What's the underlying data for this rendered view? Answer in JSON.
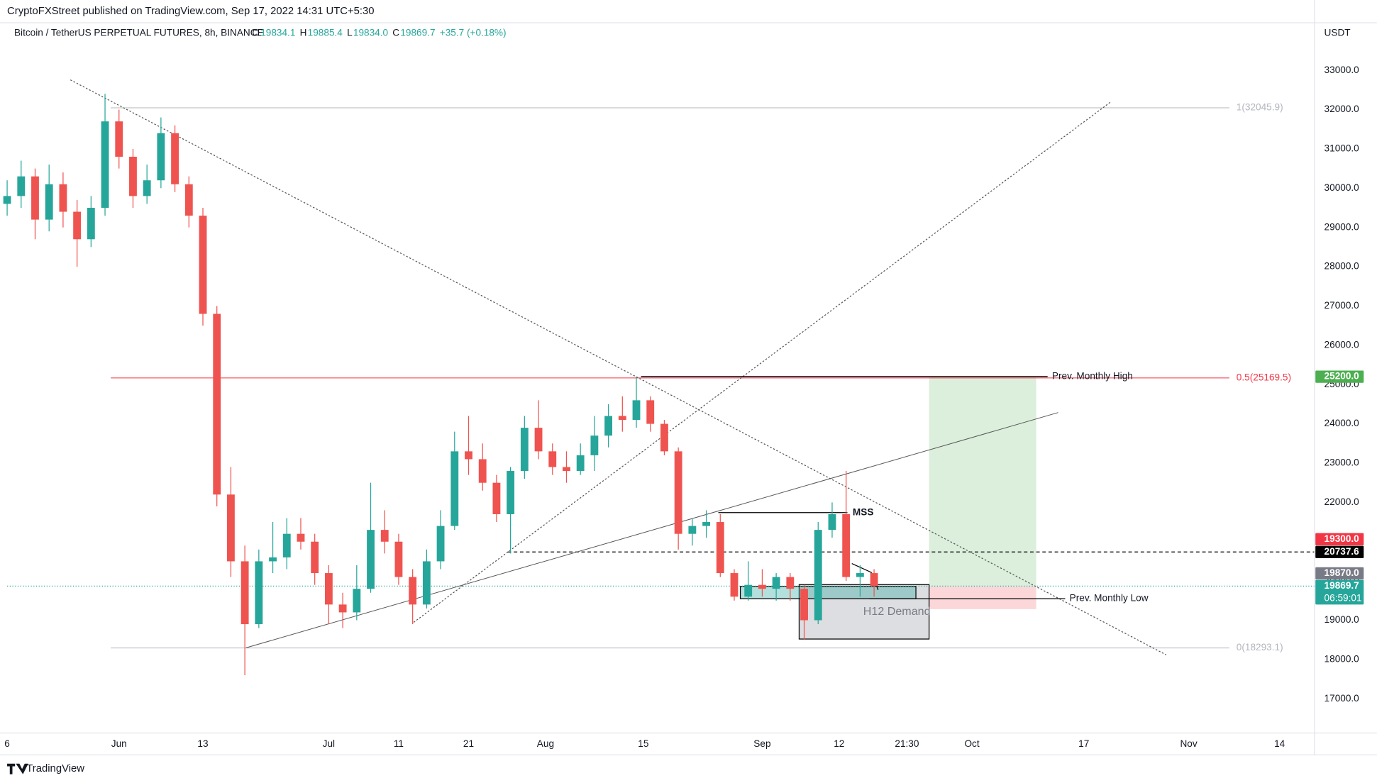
{
  "header": {
    "publisher": "CryptoFXStreet published on TradingView.com, Sep 17, 2022 14:31 UTC+5:30",
    "symbol": "Bitcoin / TetherUS PERPETUAL FUTURES, 8h, BINANCE",
    "ohlc": [
      {
        "key": "O",
        "value": "19834.1"
      },
      {
        "key": "H",
        "value": "19885.4"
      },
      {
        "key": "L",
        "value": "19834.0"
      },
      {
        "key": "C",
        "value": "19869.7"
      }
    ],
    "change": "+35.7 (+0.18%)"
  },
  "chart_data": {
    "type": "candlestick",
    "x": [
      -16,
      -14,
      -12,
      -10,
      -8,
      -6,
      -4,
      -2,
      0,
      2,
      4,
      6,
      8,
      10,
      12,
      14,
      16,
      18,
      20,
      22,
      24,
      26,
      28,
      30,
      32,
      34,
      36,
      38,
      40,
      42,
      44,
      46,
      48,
      50,
      52,
      54,
      56,
      58,
      60,
      62,
      64,
      66,
      68,
      70,
      72,
      74,
      76,
      78,
      80,
      82,
      84,
      86,
      88,
      90,
      92,
      94,
      96,
      98,
      100,
      102,
      104,
      106,
      108
    ],
    "open": [
      29600,
      29800,
      30300,
      29200,
      30100,
      29400,
      28700,
      29500,
      31700,
      30800,
      29800,
      30200,
      31400,
      30100,
      29300,
      26800,
      22200,
      20500,
      18900,
      20500,
      20600,
      21200,
      21000,
      20200,
      19400,
      19200,
      19800,
      21300,
      21000,
      20100,
      19400,
      20500,
      21400,
      23300,
      23100,
      22500,
      21700,
      22800,
      23900,
      23300,
      22900,
      22800,
      23200,
      23700,
      24200,
      24100,
      24600,
      24000,
      23300,
      21200,
      21400,
      21500,
      20200,
      19600,
      19900,
      19800,
      20100,
      19800,
      19000,
      21300,
      21700,
      20100,
      20200
    ],
    "high": [
      30200,
      30700,
      30500,
      30600,
      30400,
      29700,
      29800,
      32400,
      32000,
      31000,
      30600,
      31800,
      31600,
      30300,
      29500,
      27000,
      22900,
      20900,
      20800,
      21500,
      21600,
      21600,
      21200,
      20400,
      19700,
      20400,
      22500,
      21800,
      21200,
      20300,
      20800,
      21800,
      23800,
      24200,
      23500,
      22700,
      22900,
      24200,
      24600,
      23500,
      23300,
      23500,
      24200,
      24500,
      24700,
      25200,
      24700,
      24100,
      23400,
      21600,
      21800,
      21700,
      20300,
      20500,
      20300,
      20200,
      20200,
      19900,
      21500,
      22000,
      22800,
      20400,
      20300
    ],
    "low": [
      29300,
      29500,
      28700,
      28900,
      29000,
      28000,
      28500,
      29300,
      30500,
      29500,
      29600,
      30000,
      29900,
      29000,
      26500,
      21900,
      20100,
      17600,
      18800,
      20200,
      20300,
      20800,
      19900,
      18900,
      18800,
      19000,
      19700,
      20700,
      19900,
      18900,
      19300,
      20300,
      21300,
      22700,
      22300,
      21500,
      20700,
      22600,
      23100,
      22700,
      22500,
      22700,
      22800,
      23400,
      23800,
      23900,
      23800,
      23200,
      20800,
      20900,
      21100,
      20100,
      19500,
      19500,
      19600,
      19500,
      19500,
      18500,
      18900,
      21100,
      20000,
      19600,
      19600
    ],
    "close": [
      29800,
      30300,
      29200,
      30100,
      29400,
      28700,
      29500,
      31700,
      30800,
      29800,
      30200,
      31400,
      30100,
      29300,
      26800,
      22200,
      20500,
      18900,
      20500,
      20600,
      21200,
      21000,
      20200,
      19400,
      19200,
      19800,
      21300,
      21000,
      20100,
      19400,
      20500,
      21400,
      23300,
      23100,
      22500,
      21700,
      22800,
      23900,
      23300,
      22900,
      22800,
      23200,
      23700,
      24200,
      24100,
      24600,
      24000,
      23300,
      21200,
      21400,
      21500,
      20200,
      19600,
      19900,
      19800,
      20100,
      19800,
      19000,
      21300,
      21700,
      20100,
      20200,
      19869.7
    ],
    "up_color": "#26a69a",
    "down_color": "#ef5350",
    "xlim": [
      -16,
      171
    ],
    "ylim": [
      16130,
      34120
    ],
    "xticks": [
      {
        "value": -16,
        "label": "6"
      },
      {
        "value": 0,
        "label": "Jun"
      },
      {
        "value": 12,
        "label": "13"
      },
      {
        "value": 30,
        "label": "Jul"
      },
      {
        "value": 40,
        "label": "11"
      },
      {
        "value": 50,
        "label": "21"
      },
      {
        "value": 61,
        "label": "Aug"
      },
      {
        "value": 75,
        "label": "15"
      },
      {
        "value": 92,
        "label": "Sep"
      },
      {
        "value": 103,
        "label": "12"
      },
      {
        "value": 112.7,
        "label": "21:30"
      },
      {
        "value": 122,
        "label": "Oct"
      },
      {
        "value": 138,
        "label": "17"
      },
      {
        "value": 153,
        "label": "Nov"
      },
      {
        "value": 166,
        "label": "14"
      }
    ],
    "yticks": [
      {
        "value": 17000,
        "label": "17000.0"
      },
      {
        "value": 18000,
        "label": "18000.0"
      },
      {
        "value": 19000,
        "label": "19000.0"
      },
      {
        "value": 20000,
        "label": "20000.0"
      },
      {
        "value": 21000,
        "label": "21000.0"
      },
      {
        "value": 22000,
        "label": "22000.0"
      },
      {
        "value": 23000,
        "label": "23000.0"
      },
      {
        "value": 24000,
        "label": "24000.0"
      },
      {
        "value": 25000,
        "label": "25000.0"
      },
      {
        "value": 26000,
        "label": "26000.0"
      },
      {
        "value": 27000,
        "label": "27000.0"
      },
      {
        "value": 28000,
        "label": "28000.0"
      },
      {
        "value": 29000,
        "label": "29000.0"
      },
      {
        "value": 30000,
        "label": "30000.0"
      },
      {
        "value": 31000,
        "label": "31000.0"
      },
      {
        "value": 32000,
        "label": "32000.0"
      },
      {
        "value": 33000,
        "label": "33000.0"
      }
    ],
    "y_axis_label": "USDT",
    "fib_levels": [
      {
        "value": 32045.9,
        "label": "1(32045.9)",
        "color": "#b2b5be"
      },
      {
        "value": 25169.5,
        "label": "0.5(25169.5)",
        "color": "#f23645"
      },
      {
        "value": 18293.1,
        "label": "0(18293.1)",
        "color": "#b2b5be"
      }
    ],
    "price_labels": [
      {
        "value": 25200,
        "label": "25200.0",
        "color": "#4caf50"
      },
      {
        "value": 20737.6,
        "label": "20737.6",
        "color": "#000000",
        "line_style": "dashed"
      },
      {
        "value": 19870,
        "label": "19870.0",
        "color": "#787b86"
      },
      {
        "value": 19869.7,
        "label": "19869.7",
        "color": "#26a69a",
        "countdown": "06:59:01"
      },
      {
        "value": 19300,
        "label": "19300.0",
        "color": "#f23645"
      }
    ],
    "annotations": {
      "prev_monthly_high": "Prev. Monthly High",
      "prev_monthly_low": "Prev. Monthly Low",
      "mss": "MSS",
      "demand": "H12 Demand"
    }
  },
  "footer": {
    "brand": "TradingView"
  }
}
